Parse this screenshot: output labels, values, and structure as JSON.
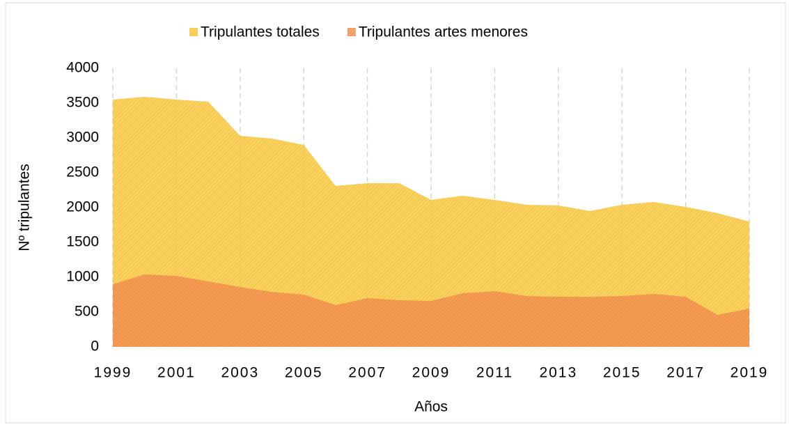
{
  "chart_data": {
    "type": "area",
    "x_label": "Años",
    "y_label": "Nº tripulantes",
    "x": [
      1999,
      2000,
      2001,
      2002,
      2003,
      2004,
      2005,
      2006,
      2007,
      2008,
      2009,
      2010,
      2011,
      2012,
      2013,
      2014,
      2015,
      2016,
      2017,
      2018,
      2019
    ],
    "series": [
      {
        "name": "Tripulantes totales",
        "color": "#f5c232",
        "values": [
          3550,
          3590,
          3550,
          3520,
          3030,
          2990,
          2900,
          2310,
          2350,
          2350,
          2110,
          2170,
          2110,
          2040,
          2030,
          1950,
          2040,
          2080,
          2010,
          1920,
          1800
        ]
      },
      {
        "name": "Tripulantes artes menores",
        "color": "#f08a4b",
        "values": [
          900,
          1040,
          1020,
          940,
          860,
          790,
          750,
          600,
          700,
          670,
          660,
          770,
          800,
          730,
          720,
          720,
          730,
          760,
          720,
          460,
          550
        ]
      }
    ],
    "xlim": [
      1999,
      2019
    ],
    "xticks": [
      1999,
      2001,
      2003,
      2005,
      2007,
      2009,
      2011,
      2013,
      2015,
      2017,
      2019
    ],
    "ylim": [
      0,
      4000
    ],
    "yticks": [
      0,
      500,
      1000,
      1500,
      2000,
      2500,
      3000,
      3500,
      4000
    ],
    "grid": "x",
    "legend": "top"
  }
}
